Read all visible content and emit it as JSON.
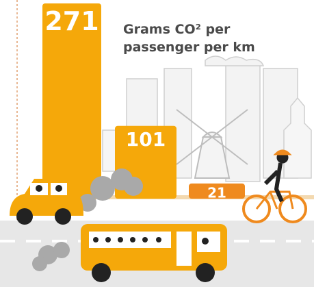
{
  "chart_data": {
    "type": "bar",
    "title": "Grams CO² per passenger per km",
    "categories": [
      null,
      null,
      null
    ],
    "values": [
      271,
      101,
      21
    ],
    "colors": [
      "#f5a80a",
      "#f5a80a",
      "#ef8a1e"
    ]
  }
}
